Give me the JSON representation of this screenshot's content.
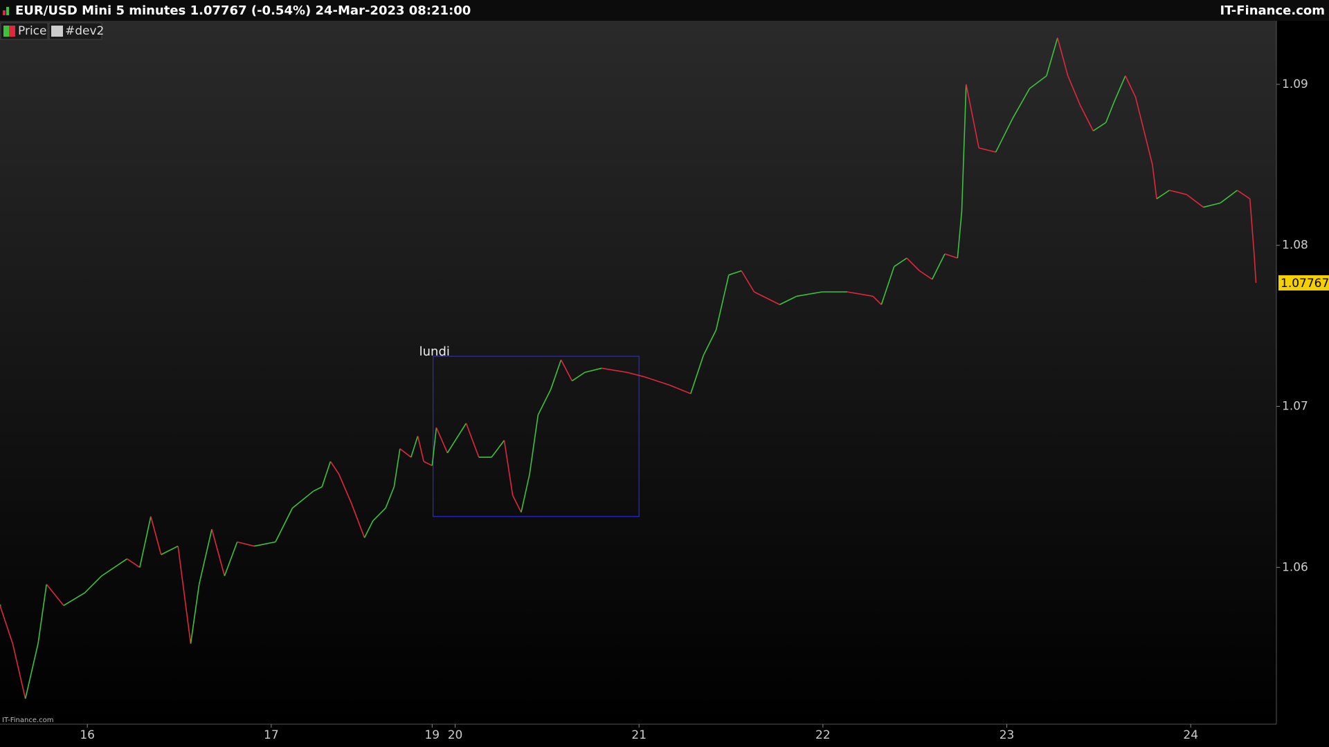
{
  "chart_data": {
    "type": "line",
    "title": "EUR/USD Mini 5 minutes 1.07767 (-0.54%) 24-Mar-2023 08:21:00",
    "brand": "IT-Finance.com",
    "watermark": "IT-Finance.com",
    "extra_legend": [
      "#dev2"
    ],
    "annotation": {
      "text": "lundi",
      "x": [
        2.88,
        4.0
      ],
      "y": [
        1.06316,
        1.07311
      ]
    },
    "up_color": "#3cc33c",
    "down_color": "#e0283c",
    "grid": false,
    "xlim": [
      0.525,
      7.466
    ],
    "xticks": [
      {
        "value": 1,
        "label": "16"
      },
      {
        "value": 2,
        "label": "17"
      },
      {
        "value": 2.875,
        "label": "19"
      },
      {
        "value": 3,
        "label": "20"
      },
      {
        "value": 4,
        "label": "21"
      },
      {
        "value": 5,
        "label": "22"
      },
      {
        "value": 6,
        "label": "23"
      },
      {
        "value": 7,
        "label": "24"
      }
    ],
    "ylim": [
      1.05026,
      1.09395
    ],
    "yticks": [
      1.06,
      1.07,
      1.08,
      1.09
    ],
    "x": [
      0.525,
      0.594,
      0.663,
      0.732,
      0.778,
      0.871,
      0.986,
      1.078,
      1.216,
      1.285,
      1.345,
      1.401,
      1.493,
      1.562,
      1.608,
      1.677,
      1.746,
      1.815,
      1.907,
      2.023,
      2.115,
      2.23,
      2.276,
      2.322,
      2.368,
      2.437,
      2.507,
      2.553,
      2.622,
      2.668,
      2.7,
      2.76,
      2.797,
      2.829,
      2.875,
      2.898,
      2.958,
      3.06,
      3.129,
      3.198,
      3.267,
      3.313,
      3.359,
      3.405,
      3.451,
      3.52,
      3.576,
      3.636,
      3.705,
      3.797,
      3.935,
      4.027,
      4.166,
      4.281,
      4.35,
      4.419,
      4.488,
      4.557,
      4.626,
      4.765,
      4.857,
      4.995,
      5.133,
      5.272,
      5.318,
      5.387,
      5.456,
      5.525,
      5.594,
      5.663,
      5.732,
      5.755,
      5.779,
      5.848,
      5.94,
      6.032,
      6.124,
      6.216,
      6.276,
      6.332,
      6.4,
      6.47,
      6.539,
      6.585,
      6.645,
      6.7,
      6.746,
      6.792,
      6.815,
      6.884,
      6.977,
      7.069,
      7.161,
      7.253,
      7.322,
      7.345,
      7.355
    ],
    "series": [
      {
        "name": "Price",
        "color": "#3cc33c",
        "values": [
          1.05763,
          1.05526,
          1.05184,
          1.05526,
          1.05895,
          1.05763,
          1.05842,
          1.05947,
          1.06053,
          1.06,
          1.06316,
          1.06079,
          1.06132,
          1.05526,
          1.05895,
          1.06237,
          1.05947,
          1.06158,
          1.06132,
          1.06158,
          1.06368,
          1.06474,
          1.065,
          1.06658,
          1.06579,
          1.06395,
          1.06184,
          1.06289,
          1.06368,
          1.065,
          1.06737,
          1.06684,
          1.06816,
          1.06658,
          1.06632,
          1.06868,
          1.06711,
          1.06895,
          1.06684,
          1.06684,
          1.06789,
          1.06447,
          1.06342,
          1.06579,
          1.06947,
          1.07105,
          1.07289,
          1.07158,
          1.07211,
          1.07237,
          1.07211,
          1.07184,
          1.07132,
          1.07079,
          1.07316,
          1.07474,
          1.07816,
          1.07842,
          1.07711,
          1.07632,
          1.07684,
          1.07711,
          1.07711,
          1.07684,
          1.07632,
          1.07868,
          1.07921,
          1.07842,
          1.07789,
          1.07947,
          1.07921,
          1.08211,
          1.09,
          1.08605,
          1.08579,
          1.08789,
          1.08974,
          1.09053,
          1.09289,
          1.09053,
          1.08868,
          1.08711,
          1.08763,
          1.08895,
          1.09053,
          1.08921,
          1.08711,
          1.085,
          1.08289,
          1.08342,
          1.08316,
          1.08237,
          1.08263,
          1.08342,
          1.08289,
          1.07947,
          1.07767
        ]
      }
    ]
  }
}
